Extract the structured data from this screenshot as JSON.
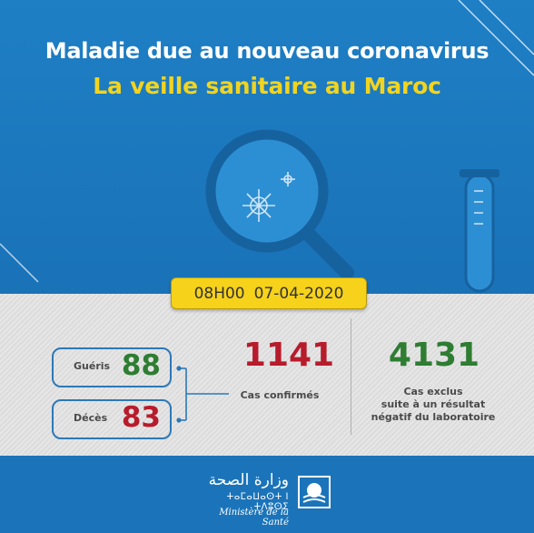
{
  "header": {
    "title_line1": "Maladie due au nouveau coronavirus",
    "title_line2": "La veille sanitaire au Maroc"
  },
  "date_banner": {
    "time": "08H00",
    "date": "07-04-2020"
  },
  "stats": {
    "recovered": {
      "label": "Guéris",
      "value": "88"
    },
    "deaths": {
      "label": "Décès",
      "value": "83"
    },
    "confirmed": {
      "value": "1141",
      "label": "Cas confirmés"
    },
    "excluded": {
      "value": "4131",
      "label_lines": [
        "Cas exclus",
        "suite à un résultat",
        "négatif du laboratoire"
      ]
    }
  },
  "footer": {
    "ministry_ar": "وزارة الصحة",
    "ministry_tifinagh": "ⵜⴰⵎⴰⵡⴰⵙⵜ ⵏ ⵜⴷⵓⵙⵉ",
    "ministry_fr": "Ministère de la Santé"
  },
  "colors": {
    "background_blue": "#1b74ba",
    "title_yellow": "#f2d41f",
    "recovered_green": "#2e7d32",
    "deaths_red": "#b71c2c",
    "confirmed_red": "#b71c2c",
    "excluded_green": "#2e7d32"
  },
  "icons": {
    "magnifier": "magnifier-virus-icon",
    "test_tube": "test-tube-icon",
    "emblem": "ministry-emblem-icon"
  }
}
